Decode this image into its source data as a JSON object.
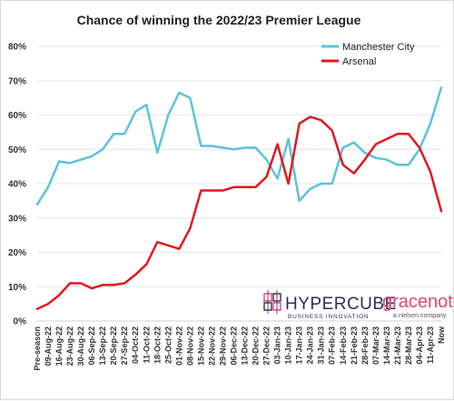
{
  "logos": {
    "hypercube_name": "HYPERCUBE",
    "hypercube_tagline": "BUSINESS INNOVATION",
    "gracenote_name": "gracenote",
    "gracenote_tagline": "a nielsen company"
  },
  "colors": {
    "manchester_city": "#5bc3dc",
    "arsenal": "#e0191f",
    "hypercube_logo": "#3a2a55",
    "gracenote_logo": "#e0457b"
  },
  "chart_data": {
    "type": "line",
    "title": "Chance of winning the 2022/23 Premier League",
    "xlabel": "",
    "ylabel": "",
    "ylim": [
      0,
      80
    ],
    "yticks": [
      0,
      10,
      20,
      30,
      40,
      50,
      60,
      70,
      80
    ],
    "ytick_labels": [
      "0%",
      "10%",
      "20%",
      "30%",
      "40%",
      "50%",
      "60%",
      "70%",
      "80%"
    ],
    "grid": true,
    "legend_position": "top-right",
    "categories": [
      "Pre-season",
      "09-Aug-22",
      "16-Aug-22",
      "23-Aug-22",
      "30-Aug-22",
      "06-Sep-22",
      "13-Sep-22",
      "20-Sep-22",
      "27-Sep-22",
      "04-Oct-22",
      "11-Oct-22",
      "18-Oct-22",
      "25-Oct-22",
      "01-Nov-22",
      "08-Nov-22",
      "15-Nov-22",
      "22-Nov-22",
      "29-Nov-22",
      "06-Dec-22",
      "13-Dec-22",
      "20-Dec-22",
      "27-Dec-22",
      "03-Jan-23",
      "10-Jan-23",
      "17-Jan-23",
      "24-Jan-23",
      "31-Jan-23",
      "07-Feb-23",
      "14-Feb-23",
      "21-Feb-23",
      "28-Feb-23",
      "07-Mar-23",
      "14-Mar-23",
      "21-Mar-23",
      "28-Mar-23",
      "04-Apr-23",
      "11-Apr-23",
      "Now"
    ],
    "series": [
      {
        "name": "Manchester City",
        "values": [
          34,
          39,
          46.5,
          46,
          47,
          48,
          50,
          54.5,
          54.5,
          61,
          63,
          49,
          60,
          66.5,
          65,
          51,
          51,
          50.5,
          50,
          50.5,
          50.5,
          47,
          41.5,
          53,
          35,
          38.5,
          40,
          40,
          50.5,
          52,
          49,
          47.5,
          47,
          45.5,
          45.5,
          50,
          57.5,
          68
        ]
      },
      {
        "name": "Arsenal",
        "values": [
          3.5,
          5,
          7.5,
          11,
          11,
          9.5,
          10.5,
          10.5,
          11,
          13.5,
          16.5,
          23,
          22,
          21,
          27,
          38,
          38,
          38,
          39,
          39,
          39,
          42,
          51.5,
          40,
          57.5,
          59.5,
          58.5,
          55.5,
          45.5,
          43,
          47,
          51.5,
          53,
          54.5,
          54.5,
          50.5,
          43.5,
          32
        ]
      }
    ]
  }
}
